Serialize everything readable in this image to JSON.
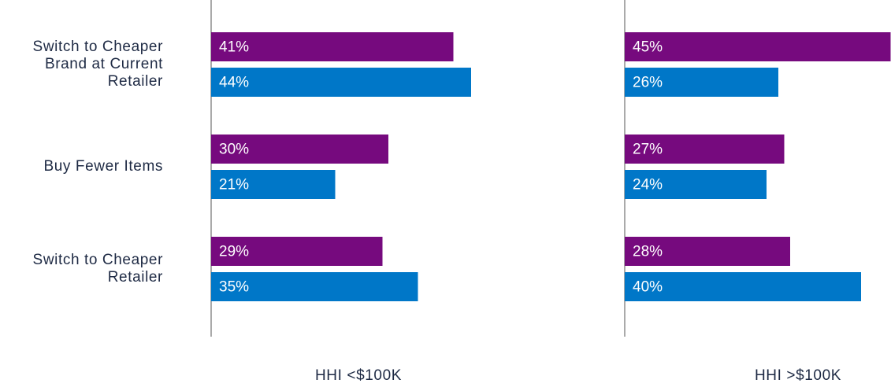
{
  "chart_data": [
    {
      "type": "bar",
      "orientation": "horizontal",
      "title": "HHI <$100K",
      "categories": [
        "Switch to Cheaper Brand at Current Retailer",
        "Buy Fewer Items",
        "Switch to Cheaper Retailer"
      ],
      "series": [
        {
          "color": "#760a7e",
          "values": [
            41,
            30,
            29
          ],
          "value_labels": [
            "41%",
            "30%",
            "29%"
          ]
        },
        {
          "color": "#0077c8",
          "values": [
            44,
            21,
            35
          ],
          "value_labels": [
            "44%",
            "21%",
            "35%"
          ]
        }
      ]
    },
    {
      "type": "bar",
      "orientation": "horizontal",
      "title": "HHI >$100K",
      "series": [
        {
          "color": "#760a7e",
          "values": [
            45,
            27,
            28
          ],
          "value_labels": [
            "45%",
            "27%",
            "28%"
          ]
        },
        {
          "color": "#0077c8",
          "values": [
            26,
            24,
            40
          ],
          "value_labels": [
            "26%",
            "24%",
            "40%"
          ]
        }
      ]
    }
  ]
}
